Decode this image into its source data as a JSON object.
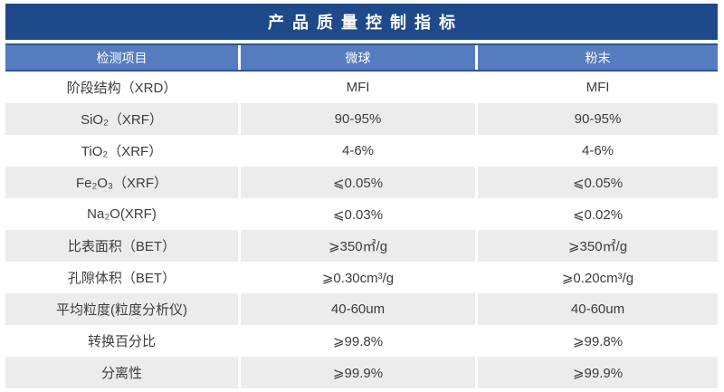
{
  "title": "产品质量控制指标",
  "colors": {
    "title_bg": "#1e4a8c",
    "header_bg": "#567cc0",
    "header_border": "#2e5597",
    "row_stripe_bg": "#ececec",
    "body_text": "#3d3d3d",
    "header_text": "#ffffff"
  },
  "table": {
    "columns": [
      "检测项目",
      "微球",
      "粉末"
    ],
    "rows": [
      {
        "item": "阶段结构（XRD）",
        "microsphere": "MFI",
        "powder": "MFI"
      },
      {
        "item": "SiO₂（XRF）",
        "microsphere": "90-95%",
        "powder": "90-95%"
      },
      {
        "item": "TiO₂（XRF）",
        "microsphere": "4-6%",
        "powder": "4-6%"
      },
      {
        "item": "Fe₂O₃（XRF）",
        "microsphere": "⩽0.05%",
        "powder": "⩽0.05%"
      },
      {
        "item": "Na₂O(XRF)",
        "microsphere": "⩽0.03%",
        "powder": "⩽0.02%"
      },
      {
        "item": "比表面积（BET）",
        "microsphere": "⩾350㎡/g",
        "powder": "⩾350㎡/g"
      },
      {
        "item": "孔隙体积（BET）",
        "microsphere": "⩾0.30cm³/g",
        "powder": "⩾0.20cm³/g"
      },
      {
        "item": "平均粒度(粒度分析仪)",
        "microsphere": "40-60um",
        "powder": "40-60um"
      },
      {
        "item": "转换百分比",
        "microsphere": "⩾99.8%",
        "powder": "⩾99.8%"
      },
      {
        "item": "分离性",
        "microsphere": "⩾99.9%",
        "powder": "⩾99.9%"
      }
    ]
  }
}
